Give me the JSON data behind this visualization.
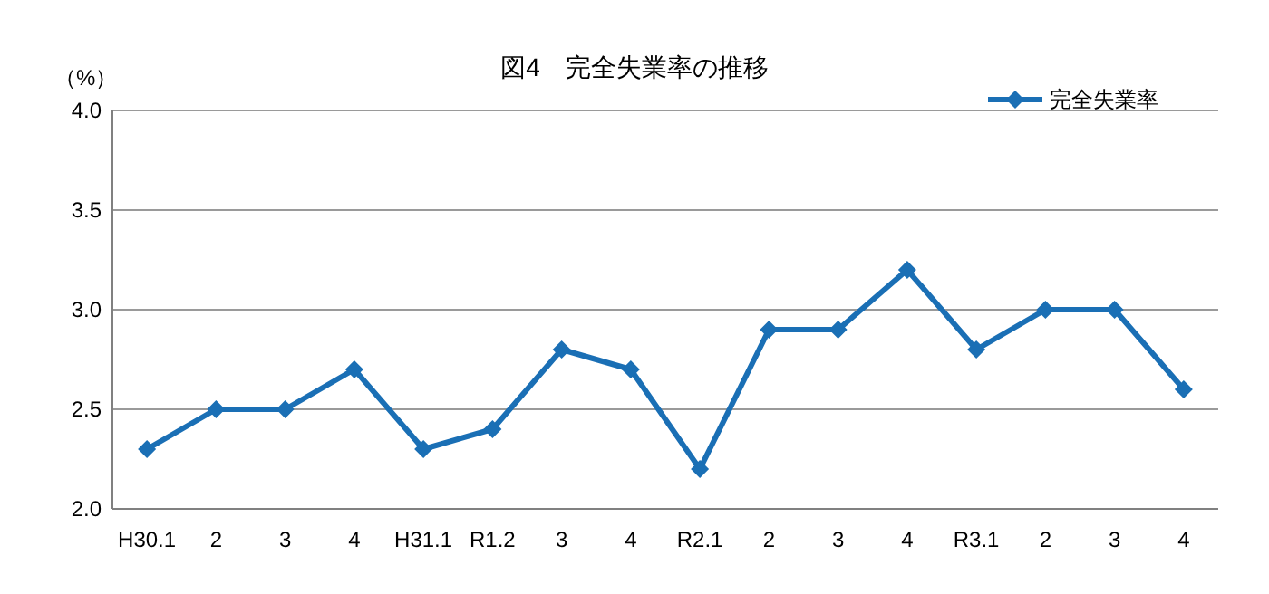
{
  "chart_data": {
    "type": "line",
    "title": "図4　完全失業率の推移",
    "ylabel": "（%）",
    "categories": [
      "H30.1",
      "2",
      "3",
      "4",
      "H31.1",
      "R1.2",
      "3",
      "4",
      "R2.1",
      "2",
      "3",
      "4",
      "R3.1",
      "2",
      "3",
      "4"
    ],
    "series": [
      {
        "name": "完全失業率",
        "color": "#1a6fb5",
        "values": [
          2.3,
          2.5,
          2.5,
          2.7,
          2.3,
          2.4,
          2.8,
          2.7,
          2.2,
          2.9,
          2.9,
          3.2,
          2.8,
          3.0,
          3.0,
          2.6
        ]
      }
    ],
    "ylim": [
      2.0,
      4.0
    ],
    "yticks": [
      {
        "value": 2.0,
        "label": "2.0"
      },
      {
        "value": 2.5,
        "label": "2.5"
      },
      {
        "value": 3.0,
        "label": "3.0"
      },
      {
        "value": 3.5,
        "label": "3.5"
      },
      {
        "value": 4.0,
        "label": "4.0"
      }
    ],
    "grid": "y",
    "legend": "top right",
    "marker": "diamond",
    "line_style": "solid"
  }
}
